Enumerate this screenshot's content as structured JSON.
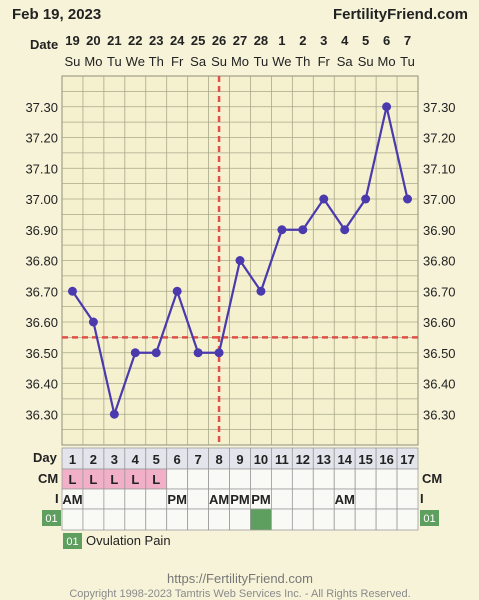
{
  "header": {
    "date": "Feb 19, 2023",
    "brand": "FertilityFriend.com"
  },
  "chart_data": {
    "type": "line",
    "title": "",
    "xlabel": "Day",
    "ylabel": "",
    "date_row_label": "Date",
    "date_labels": [
      "19",
      "20",
      "21",
      "22",
      "23",
      "24",
      "25",
      "26",
      "27",
      "28",
      "1",
      "2",
      "3",
      "4",
      "5",
      "6",
      "7"
    ],
    "weekdays": [
      "Su",
      "Mo",
      "Tu",
      "We",
      "Th",
      "Fr",
      "Sa",
      "Su",
      "Mo",
      "Tu",
      "We",
      "Th",
      "Fr",
      "Sa",
      "Su",
      "Mo",
      "Tu"
    ],
    "x": [
      1,
      2,
      3,
      4,
      5,
      6,
      7,
      8,
      9,
      10,
      11,
      12,
      13,
      14,
      15,
      16,
      17
    ],
    "series": [
      {
        "values": [
          36.7,
          36.6,
          36.3,
          36.5,
          36.5,
          36.7,
          36.5,
          36.5,
          36.8,
          36.7,
          36.9,
          36.9,
          37.0,
          36.9,
          37.0,
          37.3,
          37.0
        ]
      }
    ],
    "y_ticks": [
      "37.30",
      "37.20",
      "37.10",
      "37.00",
      "36.90",
      "36.80",
      "36.70",
      "36.60",
      "36.50",
      "36.40",
      "36.30"
    ],
    "ylim": [
      36.2,
      37.4
    ],
    "coverline": 36.55,
    "ovulation_day": 8,
    "grid": true,
    "line_color": "#4a3aae",
    "marker_color": "#4a3aae",
    "reference_line_color": "#e0504a",
    "grid_color": "#a8a88a"
  },
  "rows": {
    "day_label": "Day",
    "cm_label": "CM",
    "cm_values": [
      "L",
      "L",
      "L",
      "L",
      "L",
      "",
      "",
      "",
      "",
      "",
      "",
      "",
      "",
      "",
      "",
      "",
      ""
    ],
    "cm_highlight_color": "#f2b0c8",
    "intercourse_label": "I",
    "intercourse_values": [
      "AM",
      "",
      "",
      "",
      "",
      "PM",
      "",
      "AM",
      "PM",
      "PM",
      "",
      "",
      "",
      "AM",
      "",
      "",
      ""
    ],
    "custom_code": "01",
    "custom_marks": [
      false,
      false,
      false,
      false,
      false,
      false,
      false,
      false,
      false,
      true,
      false,
      false,
      false,
      false,
      false,
      false,
      false
    ],
    "custom_color": "#5e9e5e"
  },
  "legend": {
    "code": "01",
    "label": "Ovulation Pain"
  },
  "footer": {
    "url": "https://FertilityFriend.com",
    "copyright": "Copyright 1998-2023 Tamtris Web Services Inc. - All Rights Reserved."
  }
}
